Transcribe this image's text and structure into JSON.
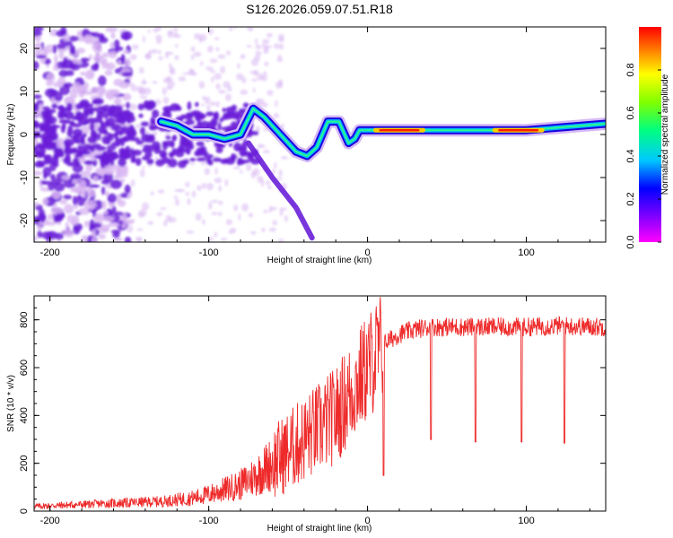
{
  "title": "S126.2026.059.07.51.R18",
  "colors": {
    "snr_line": "#ee2a2a",
    "blob_light": "#d9b8f2",
    "blob_dark": "#6a1fd8"
  },
  "chart_data": [
    {
      "type": "heatmap",
      "xlabel": "Height of straight line (km)",
      "ylabel": "Frequency (Hz)",
      "xlim": [
        -210,
        150
      ],
      "ylim": [
        -25,
        25
      ],
      "x_ticks": [
        -200,
        -100,
        0,
        100
      ],
      "y_ticks": [
        -20,
        -10,
        0,
        10,
        20
      ],
      "colorbar": {
        "label": "Normalized spectral amplitude",
        "range": [
          0.0,
          1.0
        ],
        "ticks": [
          "0.0",
          "0.2",
          "0.4",
          "0.6",
          "0.8"
        ],
        "tick_values": [
          0.0,
          0.2,
          0.4,
          0.6,
          0.8
        ],
        "colormap": [
          "#ff00ff",
          "#8000ff",
          "#0000ff",
          "#00c8ff",
          "#00ff80",
          "#80ff00",
          "#ffff00",
          "#ff8000",
          "#ff0000"
        ]
      },
      "ridge": [
        {
          "x": -130,
          "y": 3
        },
        {
          "x": -120,
          "y": 2
        },
        {
          "x": -110,
          "y": 0
        },
        {
          "x": -100,
          "y": 0
        },
        {
          "x": -90,
          "y": -1
        },
        {
          "x": -80,
          "y": 0
        },
        {
          "x": -72,
          "y": 6
        },
        {
          "x": -65,
          "y": 4
        },
        {
          "x": -55,
          "y": 0
        },
        {
          "x": -45,
          "y": -4
        },
        {
          "x": -38,
          "y": -5
        },
        {
          "x": -32,
          "y": -3
        },
        {
          "x": -25,
          "y": 3
        },
        {
          "x": -18,
          "y": 3
        },
        {
          "x": -12,
          "y": -2
        },
        {
          "x": -8,
          "y": -1
        },
        {
          "x": -5,
          "y": 1
        },
        {
          "x": 0,
          "y": 1
        },
        {
          "x": 50,
          "y": 1
        },
        {
          "x": 100,
          "y": 1
        },
        {
          "x": 150,
          "y": 2.5
        }
      ],
      "secondary_ridge": [
        {
          "x": -75,
          "y": -2
        },
        {
          "x": -60,
          "y": -10
        },
        {
          "x": -45,
          "y": -17
        },
        {
          "x": -35,
          "y": -24
        }
      ],
      "peak_segments": [
        {
          "x0": 5,
          "x1": 35,
          "y": 1
        },
        {
          "x0": 80,
          "x1": 110,
          "y": 1
        }
      ]
    },
    {
      "type": "line",
      "xlabel": "Height of straight line (km)",
      "ylabel": "SNR (10 * v/v)",
      "xlim": [
        -210,
        150
      ],
      "ylim": [
        0,
        900
      ],
      "x_ticks": [
        -200,
        -100,
        0,
        100
      ],
      "y_ticks": [
        0,
        200,
        400,
        600,
        800
      ],
      "series": [
        {
          "name": "SNR",
          "x": [
            -210,
            -190,
            -170,
            -150,
            -130,
            -110,
            -100,
            -90,
            -80,
            -70,
            -60,
            -50,
            -40,
            -30,
            -20,
            -15,
            -10,
            -5,
            0,
            5,
            10,
            20,
            30,
            40,
            60,
            80,
            100,
            120,
            150
          ],
          "y": [
            20,
            25,
            30,
            35,
            40,
            55,
            70,
            90,
            110,
            150,
            200,
            250,
            300,
            350,
            400,
            450,
            500,
            550,
            600,
            650,
            700,
            740,
            760,
            770,
            770,
            770,
            770,
            775,
            770
          ],
          "dips": [
            {
              "x": 10,
              "y": 150
            },
            {
              "x": 40,
              "y": 300
            },
            {
              "x": 68,
              "y": 290
            },
            {
              "x": 97,
              "y": 290
            },
            {
              "x": 124,
              "y": 285
            }
          ]
        }
      ]
    }
  ]
}
